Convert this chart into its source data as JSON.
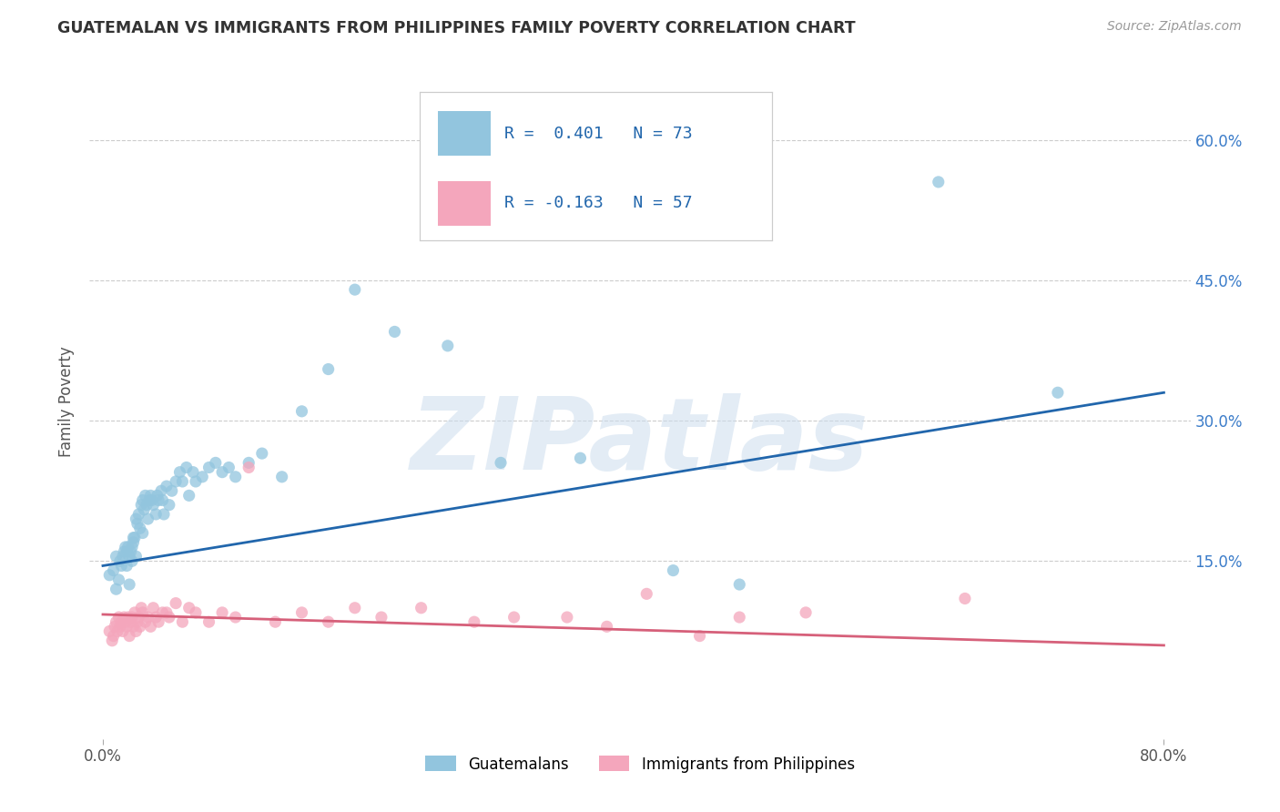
{
  "title": "GUATEMALAN VS IMMIGRANTS FROM PHILIPPINES FAMILY POVERTY CORRELATION CHART",
  "source": "Source: ZipAtlas.com",
  "ylabel": "Family Poverty",
  "ytick_labels": [
    "15.0%",
    "30.0%",
    "45.0%",
    "60.0%"
  ],
  "ytick_values": [
    0.15,
    0.3,
    0.45,
    0.6
  ],
  "xlim": [
    -0.01,
    0.82
  ],
  "ylim": [
    -0.04,
    0.68
  ],
  "watermark_text": "ZIPatlas",
  "blue_color": "#92c5de",
  "pink_color": "#f4a6bc",
  "blue_line_color": "#2166ac",
  "pink_line_color": "#d6607a",
  "legend_label1": "Guatemalans",
  "legend_label2": "Immigrants from Philippines",
  "blue_scatter_x": [
    0.005,
    0.008,
    0.01,
    0.01,
    0.012,
    0.013,
    0.014,
    0.015,
    0.016,
    0.017,
    0.018,
    0.018,
    0.019,
    0.02,
    0.02,
    0.021,
    0.022,
    0.022,
    0.023,
    0.023,
    0.024,
    0.025,
    0.025,
    0.026,
    0.027,
    0.028,
    0.029,
    0.03,
    0.03,
    0.031,
    0.032,
    0.033,
    0.034,
    0.035,
    0.036,
    0.037,
    0.038,
    0.04,
    0.041,
    0.042,
    0.044,
    0.045,
    0.046,
    0.048,
    0.05,
    0.052,
    0.055,
    0.058,
    0.06,
    0.063,
    0.065,
    0.068,
    0.07,
    0.075,
    0.08,
    0.085,
    0.09,
    0.095,
    0.1,
    0.11,
    0.12,
    0.135,
    0.15,
    0.17,
    0.19,
    0.22,
    0.26,
    0.3,
    0.36,
    0.43,
    0.48,
    0.63,
    0.72
  ],
  "blue_scatter_y": [
    0.135,
    0.14,
    0.12,
    0.155,
    0.13,
    0.15,
    0.145,
    0.155,
    0.16,
    0.165,
    0.145,
    0.16,
    0.165,
    0.125,
    0.155,
    0.16,
    0.15,
    0.165,
    0.17,
    0.175,
    0.175,
    0.155,
    0.195,
    0.19,
    0.2,
    0.185,
    0.21,
    0.18,
    0.215,
    0.205,
    0.22,
    0.21,
    0.195,
    0.215,
    0.22,
    0.215,
    0.21,
    0.2,
    0.22,
    0.215,
    0.225,
    0.215,
    0.2,
    0.23,
    0.21,
    0.225,
    0.235,
    0.245,
    0.235,
    0.25,
    0.22,
    0.245,
    0.235,
    0.24,
    0.25,
    0.255,
    0.245,
    0.25,
    0.24,
    0.255,
    0.265,
    0.24,
    0.31,
    0.355,
    0.44,
    0.395,
    0.38,
    0.255,
    0.26,
    0.14,
    0.125,
    0.555,
    0.33
  ],
  "pink_scatter_x": [
    0.005,
    0.007,
    0.008,
    0.009,
    0.01,
    0.011,
    0.012,
    0.013,
    0.014,
    0.015,
    0.016,
    0.017,
    0.018,
    0.019,
    0.02,
    0.021,
    0.022,
    0.023,
    0.024,
    0.025,
    0.026,
    0.027,
    0.028,
    0.029,
    0.03,
    0.032,
    0.034,
    0.036,
    0.038,
    0.04,
    0.042,
    0.045,
    0.048,
    0.05,
    0.055,
    0.06,
    0.065,
    0.07,
    0.08,
    0.09,
    0.1,
    0.11,
    0.13,
    0.15,
    0.17,
    0.19,
    0.21,
    0.24,
    0.28,
    0.31,
    0.35,
    0.38,
    0.41,
    0.45,
    0.48,
    0.53,
    0.65
  ],
  "pink_scatter_y": [
    0.075,
    0.065,
    0.07,
    0.08,
    0.085,
    0.075,
    0.09,
    0.08,
    0.085,
    0.075,
    0.09,
    0.085,
    0.08,
    0.09,
    0.07,
    0.085,
    0.09,
    0.08,
    0.095,
    0.075,
    0.085,
    0.09,
    0.08,
    0.1,
    0.095,
    0.085,
    0.09,
    0.08,
    0.1,
    0.09,
    0.085,
    0.095,
    0.095,
    0.09,
    0.105,
    0.085,
    0.1,
    0.095,
    0.085,
    0.095,
    0.09,
    0.25,
    0.085,
    0.095,
    0.085,
    0.1,
    0.09,
    0.1,
    0.085,
    0.09,
    0.09,
    0.08,
    0.115,
    0.07,
    0.09,
    0.095,
    0.11
  ],
  "blue_line_x": [
    0.0,
    0.8
  ],
  "blue_line_y_start": 0.145,
  "blue_line_y_end": 0.33,
  "pink_line_x": [
    0.0,
    0.8
  ],
  "pink_line_y_start": 0.093,
  "pink_line_y_end": 0.06,
  "background_color": "#ffffff",
  "grid_color": "#cccccc"
}
